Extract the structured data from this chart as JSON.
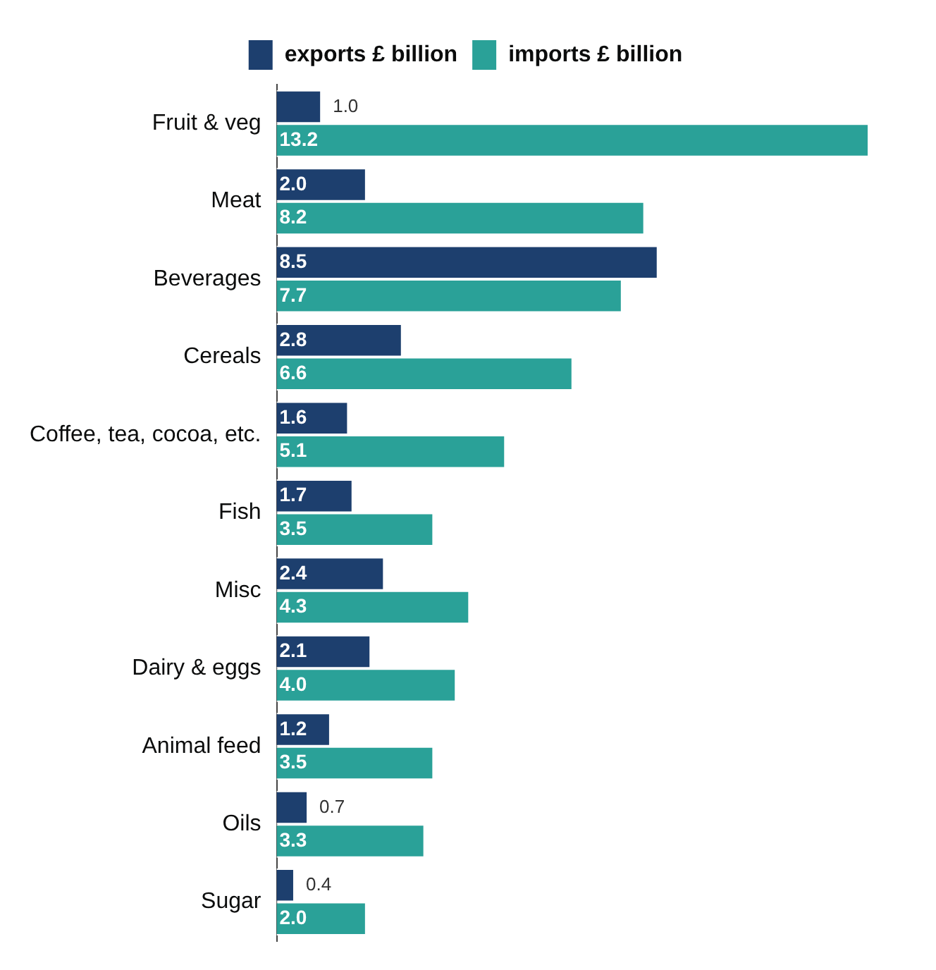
{
  "chart_data": {
    "type": "bar",
    "orientation": "horizontal",
    "categories": [
      "Fruit & veg",
      "Meat",
      "Beverages",
      "Cereals",
      "Coffee, tea, cocoa, etc.",
      "Fish",
      "Misc",
      "Dairy & eggs",
      "Animal feed",
      "Oils",
      "Sugar"
    ],
    "series": [
      {
        "name": "exports £ billion",
        "color": "#1d3f6e",
        "values": [
          1.0,
          2.0,
          8.5,
          2.8,
          1.6,
          1.7,
          2.4,
          2.1,
          1.2,
          0.7,
          0.4
        ],
        "value_labels": [
          "1.0",
          "2.0",
          "8.5",
          "2.8",
          "1.6",
          "1.7",
          "2.4",
          "2.1",
          "1.2",
          "0.7",
          "0.4"
        ]
      },
      {
        "name": "imports £ billion",
        "color": "#2aa198",
        "values": [
          13.2,
          8.2,
          7.7,
          6.6,
          5.1,
          3.5,
          4.3,
          4.0,
          3.5,
          3.3,
          2.0
        ],
        "value_labels": [
          "13.2",
          "8.2",
          "7.7",
          "6.6",
          "5.1",
          "3.5",
          "4.3",
          "4.0",
          "3.5",
          "3.3",
          "2.0"
        ]
      }
    ],
    "legend": "top",
    "grid": false
  }
}
